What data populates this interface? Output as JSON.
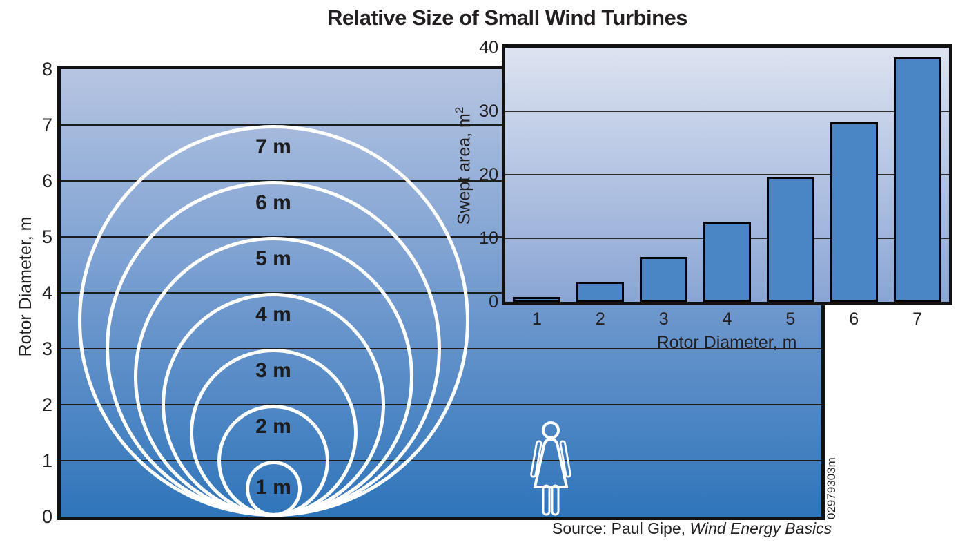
{
  "title": "Relative Size of Small Wind Turbines",
  "figure_code": "02979303m",
  "source": {
    "prefix": "Source: Paul Gipe, ",
    "book_italic": "Wind Energy Basics"
  },
  "main_chart": {
    "ylabel": "Rotor Diameter, m",
    "yticks": [
      8,
      7,
      6,
      5,
      4,
      3,
      2,
      1,
      0
    ],
    "circle_labels": [
      "7 m",
      "6 m",
      "5 m",
      "4 m",
      "3 m",
      "2 m",
      "1 m"
    ],
    "person_icon": "female-person-outline"
  },
  "inset_chart": {
    "ylabel_prefix": "Swept area, m",
    "ylabel_superscript": "2",
    "xlabel": "Rotor Diameter, m",
    "yticks": [
      40,
      30,
      20,
      10,
      0
    ],
    "xticks": [
      1,
      2,
      3,
      4,
      5,
      6,
      7
    ]
  },
  "colors": {
    "main_bg_top": "#b7c5e2",
    "main_bg_bottom": "#2f75ba",
    "inset_bg_top": "#dde3f1",
    "inset_bg_bottom": "#8aa5d4",
    "bar_fill": "#4a86c6",
    "circle_stroke": "#ffffff",
    "gridline": "#1c1c1c",
    "border": "#121212",
    "text": "#231f20"
  },
  "chart_data": [
    {
      "type": "circle-diagram",
      "title": "Relative Size of Small Wind Turbines",
      "ylabel": "Rotor Diameter, m",
      "ylim": [
        0,
        8
      ],
      "grid": true,
      "circle_diameters_m": [
        7,
        6,
        5,
        4,
        3,
        2,
        1
      ],
      "annotation": "concentric rotor circles tangent at ground level with human figure for scale"
    },
    {
      "type": "bar",
      "categories": [
        1,
        2,
        3,
        4,
        5,
        6,
        7
      ],
      "values": [
        0.79,
        3.14,
        7.07,
        12.57,
        19.63,
        28.27,
        38.48
      ],
      "xlabel": "Rotor Diameter, m",
      "ylabel": "Swept area, m²",
      "ylim": [
        0,
        40
      ],
      "yticks": [
        0,
        10,
        20,
        30,
        40
      ],
      "grid": true,
      "legend_position": "none"
    }
  ]
}
